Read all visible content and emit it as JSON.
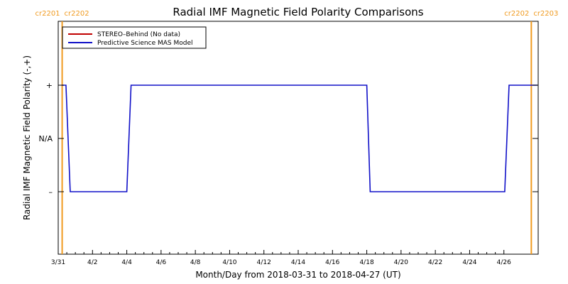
{
  "chart_data": {
    "type": "line",
    "title": "Radial IMF Magnetic Field Polarity Comparisons",
    "xlabel": "Month/Day from 2018-03-31 to 2018-04-27 (UT)",
    "ylabel": "Radial IMF Magnetic Field Polarity (-,+)",
    "xlim": [
      0,
      28
    ],
    "ylim": [
      -2,
      2
    ],
    "x_ticks": [
      {
        "x": 0,
        "label": "3/31"
      },
      {
        "x": 2,
        "label": "4/2"
      },
      {
        "x": 4,
        "label": "4/4"
      },
      {
        "x": 6,
        "label": "4/6"
      },
      {
        "x": 8,
        "label": "4/8"
      },
      {
        "x": 10,
        "label": "4/10"
      },
      {
        "x": 12,
        "label": "4/12"
      },
      {
        "x": 14,
        "label": "4/14"
      },
      {
        "x": 16,
        "label": "4/16"
      },
      {
        "x": 18,
        "label": "4/18"
      },
      {
        "x": 20,
        "label": "4/20"
      },
      {
        "x": 22,
        "label": "4/22"
      },
      {
        "x": 24,
        "label": "4/24"
      },
      {
        "x": 26,
        "label": "4/26"
      }
    ],
    "y_ticks": [
      {
        "y": 1,
        "label": "+"
      },
      {
        "y": 0,
        "label": "N/A"
      },
      {
        "y": -1,
        "label": "–"
      }
    ],
    "legend": [
      {
        "label": "STEREO–Behind (No data)",
        "color": "#c00000"
      },
      {
        "label": "Predictive Science MAS Model",
        "color": "#1010c8"
      }
    ],
    "legend_placement": "top-left",
    "series": [
      {
        "name": "Predictive Science MAS Model",
        "color": "#1010c8",
        "x": [
          0.2,
          0.45,
          0.7,
          4.0,
          4.25,
          18.0,
          18.2,
          26.05,
          26.3,
          27.95
        ],
        "y": [
          1,
          1,
          -1,
          -1,
          1,
          1,
          -1,
          -1,
          1,
          1
        ]
      }
    ],
    "vertical_markers": [
      {
        "x": 0.23,
        "color": "#f09a1e",
        "labels": [
          "cr2201",
          "cr2202"
        ]
      },
      {
        "x": 27.6,
        "color": "#f09a1e",
        "labels": [
          "cr2202",
          "cr2203"
        ]
      }
    ]
  }
}
